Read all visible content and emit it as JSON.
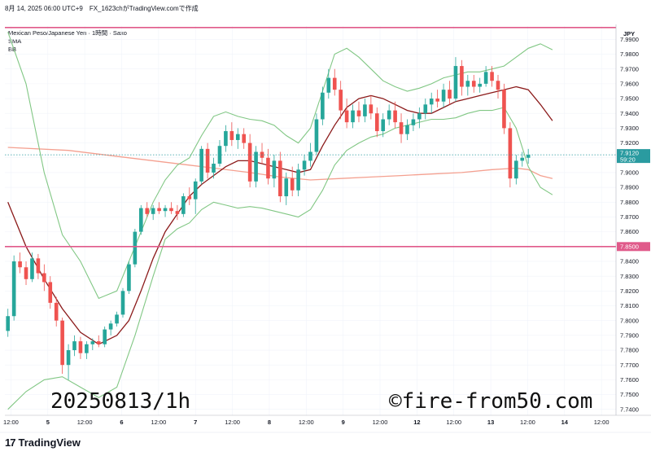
{
  "header": {
    "caption": "8月 14, 2025 06:00 UTC+9　FX_1623chがTradingView.comで作成"
  },
  "legend": {
    "symbol_line": "Mexican Peso/Japanese Yen · 1時間 · Saxo",
    "indicator_1": "SMA",
    "indicator_2": "BB"
  },
  "footer": {
    "brand": "TradingView",
    "logo_glyph": "17"
  },
  "watermark": {
    "left": "20250813/1h",
    "right": "©fire-from50.com"
  },
  "colors": {
    "up": "#26a69a",
    "down": "#ef5350",
    "bb": "#81c784",
    "sma_short": "#8b1a1a",
    "sma_long": "#f4a090",
    "level_line": "#e05a8a",
    "price_tag": "#2a9ba0"
  },
  "chart_data": {
    "type": "candlestick",
    "currency_label": "JPY",
    "y_ticks": [
      "7.9900",
      "7.9800",
      "7.9700",
      "7.9600",
      "7.9500",
      "7.9400",
      "7.9300",
      "7.9200",
      "7.9100",
      "7.9000",
      "7.8900",
      "7.8800",
      "7.8700",
      "7.8600",
      "7.8500",
      "7.8400",
      "7.8300",
      "7.8200",
      "7.8100",
      "7.8000",
      "7.7900",
      "7.7800",
      "7.7700",
      "7.7600",
      "7.7500",
      "7.7400"
    ],
    "ylim": [
      7.736,
      7.999
    ],
    "x_labels": [
      {
        "text": "12:00",
        "bold": false,
        "pos": 0.5
      },
      {
        "text": "5",
        "bold": true,
        "pos": 6.6
      },
      {
        "text": "12:00",
        "bold": false,
        "pos": 12.7
      },
      {
        "text": "6",
        "bold": true,
        "pos": 18.8
      },
      {
        "text": "12:00",
        "bold": false,
        "pos": 24.9
      },
      {
        "text": "7",
        "bold": true,
        "pos": 31.0
      },
      {
        "text": "12:00",
        "bold": false,
        "pos": 37.1
      },
      {
        "text": "8",
        "bold": true,
        "pos": 43.2
      },
      {
        "text": "12:00",
        "bold": false,
        "pos": 49.3
      },
      {
        "text": "9",
        "bold": true,
        "pos": 55.4
      },
      {
        "text": "12:00",
        "bold": false,
        "pos": 61.5
      },
      {
        "text": "12",
        "bold": true,
        "pos": 67.6
      },
      {
        "text": "12:00",
        "bold": false,
        "pos": 73.7
      },
      {
        "text": "13",
        "bold": true,
        "pos": 79.8
      },
      {
        "text": "12:00",
        "bold": false,
        "pos": 85.9
      },
      {
        "text": "14",
        "bold": true,
        "pos": 92.0
      },
      {
        "text": "12:00",
        "bold": false,
        "pos": 98.1
      }
    ],
    "x_range": [
      -0.5,
      100.5
    ],
    "levels": [
      {
        "price": 7.998,
        "label": ""
      },
      {
        "price": 7.85,
        "label": "7.8500"
      }
    ],
    "last_price": {
      "value": 7.912,
      "label": "7.9120",
      "countdown": "59:20"
    },
    "candles": [
      [
        7.793,
        7.808,
        7.789,
        7.803
      ],
      [
        7.803,
        7.844,
        7.8,
        7.84
      ],
      [
        7.84,
        7.846,
        7.832,
        7.836
      ],
      [
        7.836,
        7.84,
        7.824,
        7.828
      ],
      [
        7.828,
        7.846,
        7.826,
        7.842
      ],
      [
        7.842,
        7.845,
        7.828,
        7.832
      ],
      [
        7.832,
        7.838,
        7.82,
        7.826
      ],
      [
        7.826,
        7.83,
        7.808,
        7.812
      ],
      [
        7.812,
        7.816,
        7.796,
        7.8
      ],
      [
        7.8,
        7.802,
        7.764,
        7.77
      ],
      [
        7.77,
        7.784,
        7.76,
        7.78
      ],
      [
        7.78,
        7.79,
        7.776,
        7.786
      ],
      [
        7.786,
        7.789,
        7.774,
        7.778
      ],
      [
        7.778,
        7.786,
        7.774,
        7.784
      ],
      [
        7.784,
        7.788,
        7.78,
        7.786
      ],
      [
        7.786,
        7.79,
        7.782,
        7.784
      ],
      [
        7.784,
        7.796,
        7.782,
        7.794
      ],
      [
        7.794,
        7.8,
        7.79,
        7.798
      ],
      [
        7.798,
        7.806,
        7.796,
        7.804
      ],
      [
        7.804,
        7.822,
        7.802,
        7.82
      ],
      [
        7.82,
        7.84,
        7.818,
        7.838
      ],
      [
        7.838,
        7.862,
        7.836,
        7.86
      ],
      [
        7.86,
        7.878,
        7.858,
        7.876
      ],
      [
        7.876,
        7.88,
        7.87,
        7.872
      ],
      [
        7.872,
        7.878,
        7.868,
        7.876
      ],
      [
        7.876,
        7.88,
        7.872,
        7.874
      ],
      [
        7.874,
        7.878,
        7.87,
        7.876
      ],
      [
        7.876,
        7.88,
        7.872,
        7.874
      ],
      [
        7.874,
        7.878,
        7.868,
        7.872
      ],
      [
        7.872,
        7.886,
        7.87,
        7.884
      ],
      [
        7.884,
        7.89,
        7.878,
        7.882
      ],
      [
        7.882,
        7.896,
        7.872,
        7.894
      ],
      [
        7.894,
        7.918,
        7.892,
        7.916
      ],
      [
        7.916,
        7.92,
        7.896,
        7.9
      ],
      [
        7.9,
        7.91,
        7.896,
        7.906
      ],
      [
        7.906,
        7.922,
        7.904,
        7.918
      ],
      [
        7.918,
        7.932,
        7.914,
        7.928
      ],
      [
        7.928,
        7.934,
        7.918,
        7.922
      ],
      [
        7.922,
        7.93,
        7.916,
        7.926
      ],
      [
        7.926,
        7.93,
        7.916,
        7.92
      ],
      [
        7.92,
        7.926,
        7.89,
        7.894
      ],
      [
        7.894,
        7.918,
        7.89,
        7.914
      ],
      [
        7.914,
        7.92,
        7.906,
        7.91
      ],
      [
        7.91,
        7.916,
        7.892,
        7.896
      ],
      [
        7.896,
        7.912,
        7.89,
        7.908
      ],
      [
        7.908,
        7.914,
        7.88,
        7.884
      ],
      [
        7.884,
        7.9,
        7.878,
        7.896
      ],
      [
        7.896,
        7.904,
        7.884,
        7.888
      ],
      [
        7.888,
        7.906,
        7.884,
        7.902
      ],
      [
        7.902,
        7.912,
        7.898,
        7.908
      ],
      [
        7.908,
        7.92,
        7.904,
        7.914
      ],
      [
        7.914,
        7.94,
        7.912,
        7.936
      ],
      [
        7.936,
        7.958,
        7.932,
        7.954
      ],
      [
        7.954,
        7.97,
        7.95,
        7.964
      ],
      [
        7.964,
        7.97,
        7.952,
        7.956
      ],
      [
        7.956,
        7.962,
        7.936,
        7.942
      ],
      [
        7.942,
        7.95,
        7.93,
        7.934
      ],
      [
        7.934,
        7.946,
        7.93,
        7.942
      ],
      [
        7.942,
        7.948,
        7.934,
        7.938
      ],
      [
        7.938,
        7.95,
        7.934,
        7.946
      ],
      [
        7.946,
        7.952,
        7.936,
        7.94
      ],
      [
        7.94,
        7.944,
        7.924,
        7.928
      ],
      [
        7.928,
        7.94,
        7.924,
        7.936
      ],
      [
        7.936,
        7.946,
        7.932,
        7.942
      ],
      [
        7.942,
        7.948,
        7.93,
        7.934
      ],
      [
        7.934,
        7.94,
        7.92,
        7.926
      ],
      [
        7.926,
        7.936,
        7.922,
        7.932
      ],
      [
        7.932,
        7.94,
        7.928,
        7.936
      ],
      [
        7.936,
        7.944,
        7.93,
        7.94
      ],
      [
        7.94,
        7.95,
        7.936,
        7.946
      ],
      [
        7.946,
        7.954,
        7.94,
        7.95
      ],
      [
        7.95,
        7.956,
        7.944,
        7.948
      ],
      [
        7.948,
        7.96,
        7.944,
        7.956
      ],
      [
        7.956,
        7.962,
        7.946,
        7.95
      ],
      [
        7.95,
        7.978,
        7.948,
        7.972
      ],
      [
        7.972,
        7.976,
        7.952,
        7.958
      ],
      [
        7.958,
        7.966,
        7.952,
        7.962
      ],
      [
        7.962,
        7.966,
        7.954,
        7.958
      ],
      [
        7.958,
        7.964,
        7.954,
        7.96
      ],
      [
        7.96,
        7.972,
        7.958,
        7.968
      ],
      [
        7.968,
        7.972,
        7.958,
        7.962
      ],
      [
        7.962,
        7.966,
        7.95,
        7.956
      ],
      [
        7.956,
        7.96,
        7.926,
        7.93
      ],
      [
        7.93,
        7.934,
        7.89,
        7.896
      ],
      [
        7.896,
        7.912,
        7.892,
        7.908
      ],
      [
        7.908,
        7.914,
        7.904,
        7.91
      ],
      [
        7.91,
        7.916,
        7.906,
        7.912
      ]
    ],
    "bb_upper": [
      [
        0,
        7.995
      ],
      [
        3,
        7.96
      ],
      [
        6,
        7.9
      ],
      [
        9,
        7.858
      ],
      [
        12,
        7.84
      ],
      [
        15,
        7.815
      ],
      [
        18,
        7.82
      ],
      [
        21,
        7.85
      ],
      [
        24,
        7.88
      ],
      [
        26,
        7.895
      ],
      [
        28,
        7.905
      ],
      [
        30,
        7.91
      ],
      [
        32,
        7.925
      ],
      [
        34,
        7.938
      ],
      [
        36,
        7.941
      ],
      [
        38,
        7.938
      ],
      [
        40,
        7.936
      ],
      [
        42,
        7.935
      ],
      [
        44,
        7.932
      ],
      [
        46,
        7.925
      ],
      [
        48,
        7.92
      ],
      [
        50,
        7.93
      ],
      [
        52,
        7.955
      ],
      [
        54,
        7.98
      ],
      [
        56,
        7.984
      ],
      [
        58,
        7.978
      ],
      [
        60,
        7.97
      ],
      [
        62,
        7.962
      ],
      [
        64,
        7.958
      ],
      [
        66,
        7.955
      ],
      [
        68,
        7.957
      ],
      [
        70,
        7.96
      ],
      [
        72,
        7.964
      ],
      [
        74,
        7.966
      ],
      [
        76,
        7.968
      ],
      [
        78,
        7.968
      ],
      [
        80,
        7.97
      ],
      [
        82,
        7.972
      ],
      [
        84,
        7.978
      ],
      [
        86,
        7.984
      ],
      [
        88,
        7.987
      ],
      [
        90,
        7.983
      ]
    ],
    "bb_lower": [
      [
        0,
        7.74
      ],
      [
        3,
        7.752
      ],
      [
        6,
        7.76
      ],
      [
        9,
        7.762
      ],
      [
        12,
        7.755
      ],
      [
        15,
        7.748
      ],
      [
        18,
        7.755
      ],
      [
        21,
        7.79
      ],
      [
        24,
        7.83
      ],
      [
        26,
        7.855
      ],
      [
        28,
        7.862
      ],
      [
        30,
        7.866
      ],
      [
        32,
        7.875
      ],
      [
        34,
        7.88
      ],
      [
        36,
        7.878
      ],
      [
        38,
        7.876
      ],
      [
        40,
        7.877
      ],
      [
        42,
        7.876
      ],
      [
        44,
        7.874
      ],
      [
        46,
        7.872
      ],
      [
        48,
        7.87
      ],
      [
        50,
        7.875
      ],
      [
        52,
        7.888
      ],
      [
        54,
        7.905
      ],
      [
        56,
        7.915
      ],
      [
        58,
        7.92
      ],
      [
        60,
        7.924
      ],
      [
        62,
        7.926
      ],
      [
        64,
        7.93
      ],
      [
        66,
        7.932
      ],
      [
        68,
        7.934
      ],
      [
        70,
        7.936
      ],
      [
        72,
        7.936
      ],
      [
        74,
        7.937
      ],
      [
        76,
        7.94
      ],
      [
        78,
        7.942
      ],
      [
        80,
        7.942
      ],
      [
        82,
        7.944
      ],
      [
        84,
        7.93
      ],
      [
        86,
        7.904
      ],
      [
        88,
        7.89
      ],
      [
        90,
        7.885
      ]
    ],
    "sma_short": [
      [
        0,
        7.88
      ],
      [
        3,
        7.85
      ],
      [
        6,
        7.828
      ],
      [
        9,
        7.808
      ],
      [
        12,
        7.792
      ],
      [
        15,
        7.784
      ],
      [
        18,
        7.79
      ],
      [
        20,
        7.8
      ],
      [
        22,
        7.82
      ],
      [
        24,
        7.842
      ],
      [
        26,
        7.86
      ],
      [
        28,
        7.872
      ],
      [
        30,
        7.884
      ],
      [
        32,
        7.892
      ],
      [
        34,
        7.898
      ],
      [
        36,
        7.904
      ],
      [
        38,
        7.908
      ],
      [
        40,
        7.908
      ],
      [
        42,
        7.906
      ],
      [
        44,
        7.904
      ],
      [
        46,
        7.902
      ],
      [
        48,
        7.9
      ],
      [
        50,
        7.902
      ],
      [
        52,
        7.918
      ],
      [
        54,
        7.932
      ],
      [
        56,
        7.944
      ],
      [
        58,
        7.95
      ],
      [
        60,
        7.952
      ],
      [
        62,
        7.95
      ],
      [
        64,
        7.946
      ],
      [
        66,
        7.942
      ],
      [
        68,
        7.94
      ],
      [
        70,
        7.94
      ],
      [
        72,
        7.944
      ],
      [
        74,
        7.948
      ],
      [
        76,
        7.95
      ],
      [
        78,
        7.952
      ],
      [
        80,
        7.954
      ],
      [
        82,
        7.956
      ],
      [
        84,
        7.958
      ],
      [
        86,
        7.956
      ],
      [
        88,
        7.946
      ],
      [
        90,
        7.935
      ]
    ],
    "sma_long": [
      [
        0,
        7.917
      ],
      [
        10,
        7.915
      ],
      [
        20,
        7.91
      ],
      [
        30,
        7.905
      ],
      [
        40,
        7.9
      ],
      [
        45,
        7.897
      ],
      [
        50,
        7.895
      ],
      [
        55,
        7.896
      ],
      [
        60,
        7.897
      ],
      [
        65,
        7.898
      ],
      [
        70,
        7.899
      ],
      [
        75,
        7.9
      ],
      [
        80,
        7.902
      ],
      [
        84,
        7.903
      ],
      [
        86,
        7.902
      ],
      [
        88,
        7.898
      ],
      [
        90,
        7.896
      ]
    ]
  }
}
